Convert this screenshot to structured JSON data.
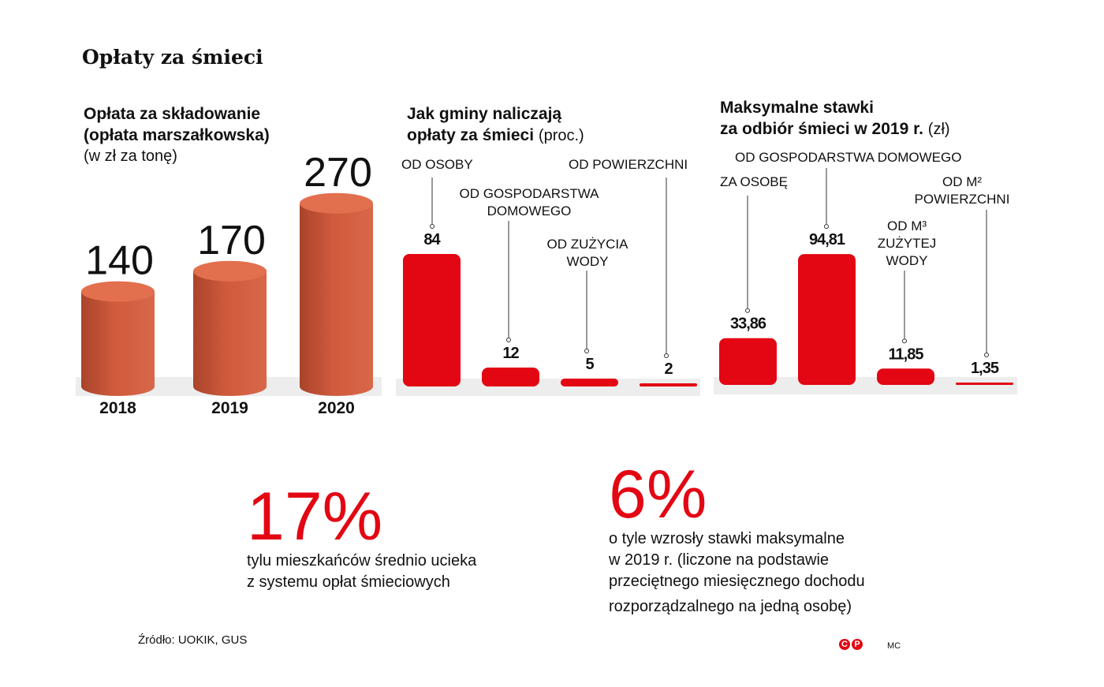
{
  "title": "Opłaty za śmieci",
  "chart_data": [
    {
      "type": "bar",
      "title_lines": [
        "Opłata za składowanie",
        "(opłata marszałkowska)"
      ],
      "subtitle": "(w zł za tonę)",
      "categories": [
        "2018",
        "2019",
        "2020"
      ],
      "values": [
        140,
        170,
        270
      ],
      "value_labels": [
        "140",
        "170",
        "270"
      ],
      "color": "#d9603f"
    },
    {
      "type": "bar",
      "title_lines": [
        "Jak gminy naliczają",
        "opłaty za śmieci"
      ],
      "subtitle": "(proc.)",
      "categories": [
        "OD OSOBY",
        "OD GOSPODARSTWA DOMOWEGO",
        "OD ZUŻYCIA WODY",
        "OD POWIERZCHNI"
      ],
      "values": [
        84,
        12,
        5,
        2
      ],
      "value_labels": [
        "84",
        "12",
        "5",
        "2"
      ],
      "color": "#e30613"
    },
    {
      "type": "bar",
      "title_lines": [
        "Maksymalne stawki",
        "za odbiór śmieci w 2019 r."
      ],
      "subtitle": "(zł)",
      "categories": [
        "ZA OSOBĘ",
        "OD GOSPODARSTWA DOMOWEGO",
        "OD M³ ZUŻYTEJ WODY",
        "OD M² POWIERZCHNI"
      ],
      "values": [
        33.86,
        94.81,
        11.85,
        1.35
      ],
      "value_labels": [
        "33,86",
        "94,81",
        "11,85",
        "1,35"
      ],
      "color": "#e30613"
    }
  ],
  "facts": [
    {
      "value": "17%",
      "lines": [
        "tylu mieszkańców średnio ucieka",
        "z systemu opłat śmieciowych"
      ]
    },
    {
      "value": "6%",
      "lines": [
        "o tyle wzrosły stawki maksymalne",
        "w 2019 r. (liczone na podstawie",
        "przeciętnego miesięcznego dochodu",
        "rozporządzalnego na jedną osobę)"
      ]
    }
  ],
  "source": "Źródło: UOKIK, GUS",
  "logo": "CP",
  "author": "MC",
  "accent": "#e30613"
}
